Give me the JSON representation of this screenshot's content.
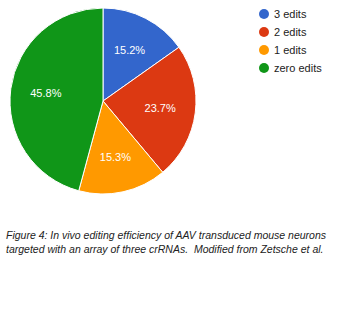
{
  "chart_data": {
    "type": "pie",
    "categories": [
      "3 edits",
      "2 edits",
      "1 edits",
      "zero edits"
    ],
    "values": [
      15.2,
      23.7,
      15.3,
      45.8
    ],
    "value_labels": [
      "15.2%",
      "23.7%",
      "15.3%",
      "45.8%"
    ],
    "colors": [
      "#3366cc",
      "#dc3912",
      "#ff9900",
      "#109618"
    ],
    "data_labels": true,
    "legend": "top-right",
    "caption": "Figure 4: In vivo editing efficiency of AAV transduced mouse neurons targeted with an array of three crRNAs.  Modified from Zetsche et al."
  }
}
